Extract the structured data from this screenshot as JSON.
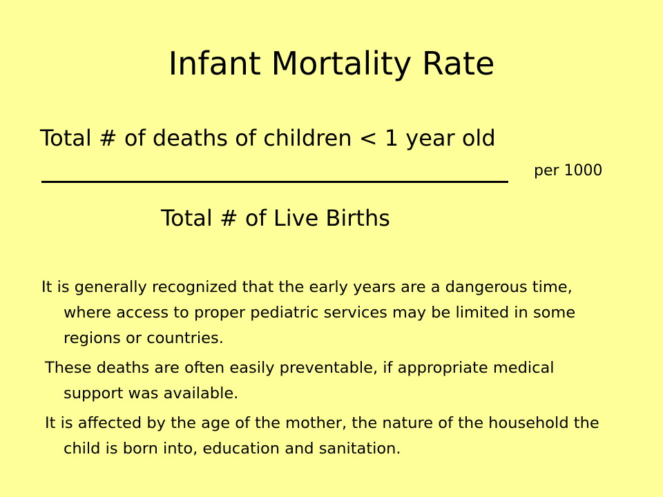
{
  "slide": {
    "title": "Infant Mortality Rate",
    "formula": {
      "numerator": "Total # of deaths of children < 1 year old",
      "per_label": "per 1000",
      "denominator": "Total # of Live Births"
    },
    "paragraphs": [
      "It is generally recognized that the early years are a dangerous time, where access to proper pediatric services may be limited in some regions or countries.",
      "These deaths are often easily preventable, if appropriate medical support was available.",
      "It is affected by the age of the mother, the nature of the household the child is born into, education and sanitation."
    ]
  },
  "colors": {
    "background": "#ffff99",
    "text": "#000000"
  }
}
